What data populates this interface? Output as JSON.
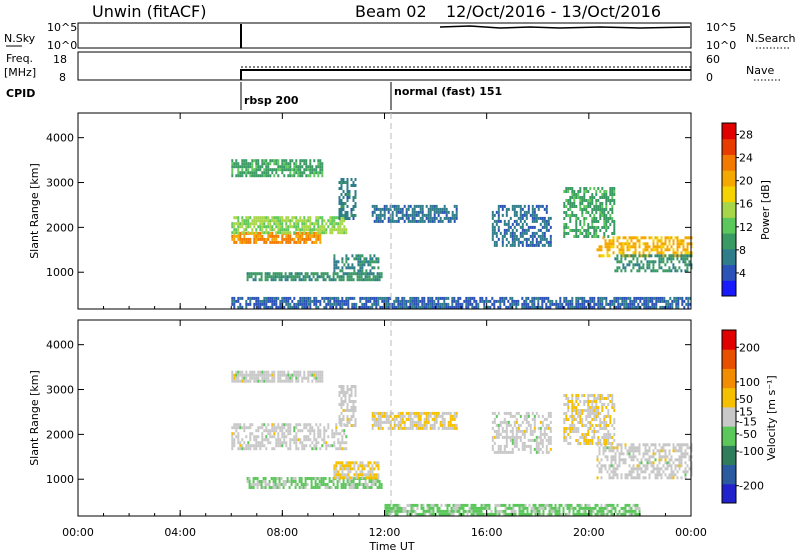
{
  "header": {
    "station": "Unwin (fitACF)",
    "beam": "Beam 02",
    "date_range": "12/Oct/2016 - 13/Oct/2016"
  },
  "summary": {
    "nsky_label": "N.Sky",
    "nsky_ticks": [
      "10^5",
      "10^0"
    ],
    "nsearch_label": "N.Search",
    "nsearch_ticks": [
      "10^5",
      "10^0"
    ],
    "freq_label_line1": "Freq.",
    "freq_label_line2": "[MHz]",
    "freq_ticks": [
      "18",
      "8"
    ],
    "nave_label": "Nave",
    "nave_ticks": [
      "60",
      "0"
    ],
    "cpid_label": "CPID",
    "cpid_segments": [
      {
        "label": "rbsp 200",
        "start_hour": 6.0
      },
      {
        "label": "normal (fast) 151",
        "start_hour": 12.0
      }
    ]
  },
  "axes": {
    "ylabel": "Slant Range [km]",
    "xlabel": "Time UT",
    "x_ticks": [
      "00:00",
      "04:00",
      "08:00",
      "12:00",
      "16:00",
      "20:00",
      "00:00"
    ],
    "x_tick_hours": [
      0,
      4,
      8,
      12,
      16,
      20,
      24
    ],
    "y_ticks": [
      "1000",
      "2000",
      "3000",
      "4000"
    ],
    "y_tick_values": [
      1000,
      2000,
      3000,
      4000
    ]
  },
  "chart_data": [
    {
      "type": "heatmap",
      "parameter": "power",
      "xlim_hours": [
        0,
        24
      ],
      "ylim_km": [
        180,
        4550
      ],
      "colorbar": {
        "label": "Power [dB]",
        "ticks": [
          "28",
          "24",
          "20",
          "16",
          "12",
          "8",
          "4"
        ],
        "tick_values": [
          28,
          24,
          20,
          16,
          12,
          8,
          4
        ],
        "range": [
          0,
          30
        ],
        "colors": [
          "#1a1aff",
          "#2a52b8",
          "#2f7d8a",
          "#3a9a63",
          "#5cc85c",
          "#a8d64a",
          "#f5d300",
          "#f5a800",
          "#f27a00",
          "#e83b00",
          "#e00000"
        ]
      },
      "echo_regions": [
        {
          "t0": 6.0,
          "t1": 9.6,
          "r0": 3180,
          "r1": 3520,
          "level": 10
        },
        {
          "t0": 6.0,
          "t1": 9.5,
          "r0": 1650,
          "r1": 1900,
          "level": 22
        },
        {
          "t0": 6.0,
          "t1": 10.5,
          "r0": 1900,
          "r1": 2250,
          "level": 14
        },
        {
          "t0": 6.6,
          "t1": 11.9,
          "r0": 820,
          "r1": 1000,
          "level": 9
        },
        {
          "t0": 10.0,
          "t1": 11.8,
          "r0": 1000,
          "r1": 1400,
          "level": 8
        },
        {
          "t0": 10.2,
          "t1": 10.9,
          "r0": 2200,
          "r1": 3100,
          "level": 7
        },
        {
          "t0": 11.5,
          "t1": 14.8,
          "r0": 2150,
          "r1": 2500,
          "level": 6
        },
        {
          "t0": 16.2,
          "t1": 18.5,
          "r0": 1600,
          "r1": 2500,
          "level": 6
        },
        {
          "t0": 19.0,
          "t1": 21.0,
          "r0": 1800,
          "r1": 2900,
          "level": 10
        },
        {
          "t0": 20.3,
          "t1": 24.0,
          "r0": 1350,
          "r1": 1800,
          "level": 20
        },
        {
          "t0": 21.0,
          "t1": 24.0,
          "r0": 1000,
          "r1": 1400,
          "level": 9
        },
        {
          "t0": 6.0,
          "t1": 24.0,
          "r0": 200,
          "r1": 450,
          "level": 5
        }
      ]
    },
    {
      "type": "heatmap",
      "parameter": "velocity",
      "xlim_hours": [
        0,
        24
      ],
      "ylim_km": [
        180,
        4550
      ],
      "colorbar": {
        "label": "Velocity [m s⁻¹]",
        "ticks": [
          "200",
          "100",
          "50",
          "15",
          "-15",
          "-50",
          "-100",
          "-200"
        ],
        "tick_values": [
          200,
          100,
          50,
          15,
          -15,
          -50,
          -100,
          -200
        ],
        "range": [
          -250,
          250
        ],
        "colors": [
          "#2222cc",
          "#2a5aa0",
          "#2f7d5a",
          "#5cc85c",
          "#c8c8c8",
          "#f5c000",
          "#f28c00",
          "#e85000",
          "#e00000"
        ]
      },
      "echo_regions": [
        {
          "t0": 6.0,
          "t1": 9.6,
          "r0": 3180,
          "r1": 3420,
          "level": 0
        },
        {
          "t0": 6.0,
          "t1": 10.5,
          "r0": 1650,
          "r1": 2250,
          "level": 0
        },
        {
          "t0": 6.6,
          "t1": 11.9,
          "r0": 820,
          "r1": 1050,
          "level": -40
        },
        {
          "t0": 10.0,
          "t1": 11.8,
          "r0": 1050,
          "r1": 1400,
          "level": 30
        },
        {
          "t0": 10.2,
          "t1": 10.9,
          "r0": 2200,
          "r1": 3100,
          "level": 0
        },
        {
          "t0": 11.5,
          "t1": 14.8,
          "r0": 2150,
          "r1": 2500,
          "level": 20
        },
        {
          "t0": 16.2,
          "t1": 18.5,
          "r0": 1600,
          "r1": 2500,
          "level": 0
        },
        {
          "t0": 19.0,
          "t1": 21.0,
          "r0": 1800,
          "r1": 2900,
          "level": 20
        },
        {
          "t0": 20.3,
          "t1": 24.0,
          "r0": 1000,
          "r1": 1800,
          "level": 0
        },
        {
          "t0": 12.0,
          "t1": 22.0,
          "r0": 200,
          "r1": 450,
          "level": -40
        }
      ]
    }
  ]
}
